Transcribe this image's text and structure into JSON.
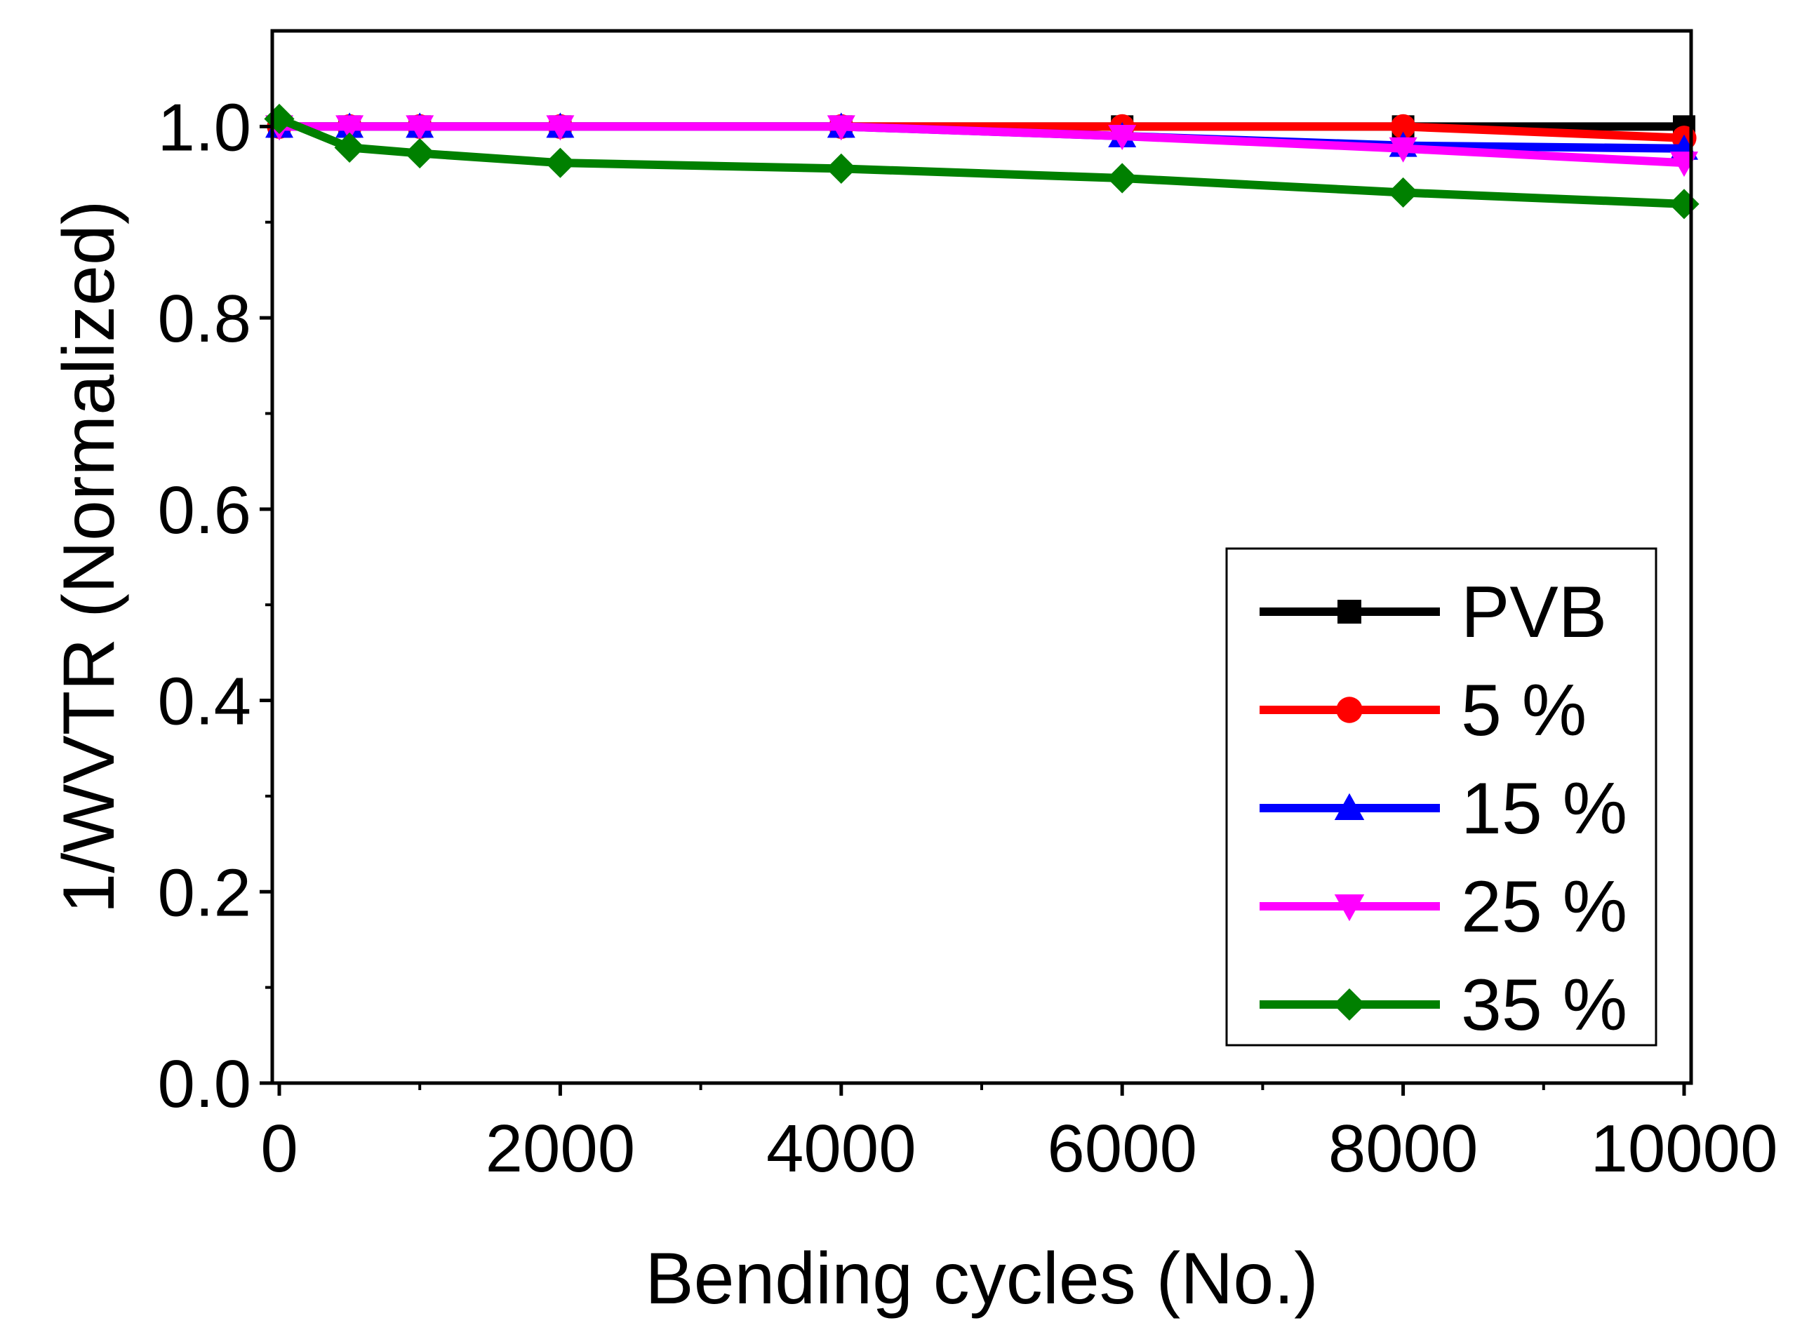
{
  "chart_data": {
    "type": "line",
    "title": "",
    "xlabel": "Bending cycles (No.)",
    "ylabel": "1/WVTR (Normalized)",
    "xlim": [
      -50,
      10050
    ],
    "ylim": [
      0.0,
      1.1
    ],
    "x_ticks": [
      0,
      2000,
      4000,
      6000,
      8000,
      10000
    ],
    "x_tick_labels": [
      "0",
      "2000",
      "4000",
      "6000",
      "8000",
      "10000"
    ],
    "x_minor_ticks": [
      1000,
      3000,
      5000,
      7000,
      9000
    ],
    "y_ticks": [
      0.0,
      0.2,
      0.4,
      0.6,
      0.8,
      1.0
    ],
    "y_tick_labels": [
      "0.0",
      "0.2",
      "0.4",
      "0.6",
      "0.8",
      "1.0"
    ],
    "y_minor_ticks": [
      0.1,
      0.3,
      0.5,
      0.7,
      0.9
    ],
    "grid": false,
    "legend_position": "bottom-right",
    "x": [
      0,
      500,
      1000,
      2000,
      4000,
      6000,
      8000,
      10000
    ],
    "series": [
      {
        "name": "PVB",
        "color": "#000000",
        "marker": "square",
        "values": [
          1.0,
          1.0,
          1.0,
          1.0,
          1.0,
          1.0,
          1.0,
          1.0
        ]
      },
      {
        "name": "5 %",
        "color": "#ff0000",
        "marker": "circle",
        "values": [
          1.0,
          1.0,
          1.0,
          1.0,
          1.0,
          1.0,
          1.0,
          0.988
        ]
      },
      {
        "name": "15 %",
        "color": "#0000ff",
        "marker": "triangle-up",
        "values": [
          1.0,
          1.0,
          1.0,
          1.0,
          1.0,
          0.99,
          0.98,
          0.977
        ]
      },
      {
        "name": "25 %",
        "color": "#ff00ff",
        "marker": "triangle-down",
        "values": [
          1.0,
          1.0,
          1.0,
          1.0,
          1.0,
          0.99,
          0.977,
          0.962
        ]
      },
      {
        "name": "35 %",
        "color": "#008000",
        "marker": "diamond",
        "values": [
          1.008,
          0.978,
          0.972,
          0.962,
          0.956,
          0.946,
          0.931,
          0.919
        ]
      }
    ]
  }
}
